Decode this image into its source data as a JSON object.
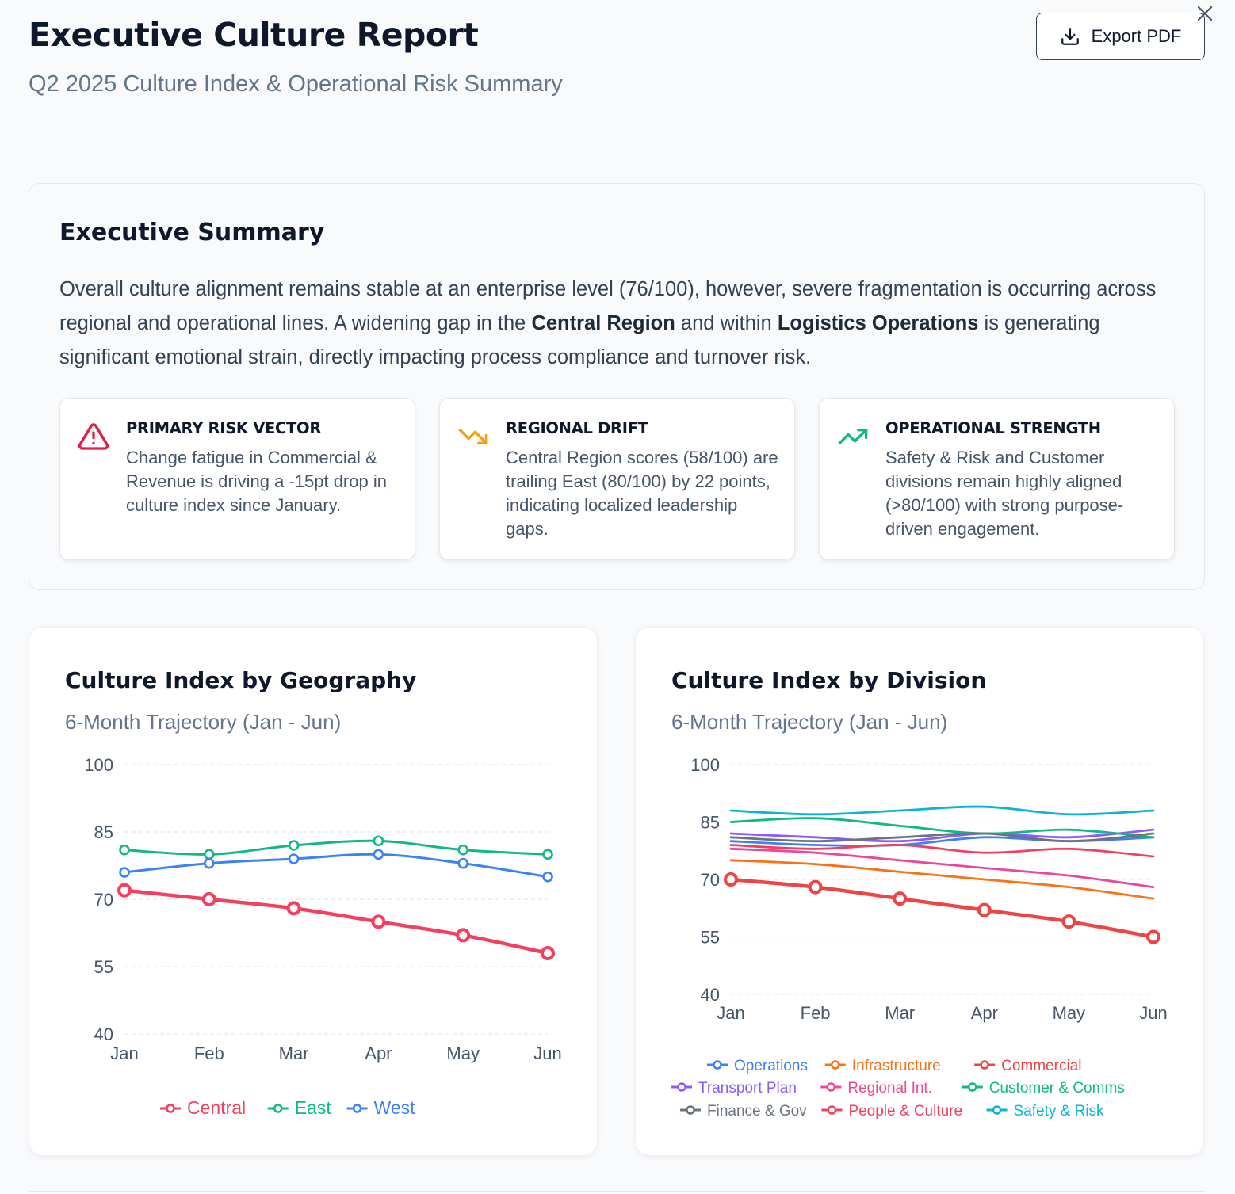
{
  "header": {
    "title": "Executive Culture Report",
    "subtitle": "Q2 2025 Culture Index & Operational Risk Summary",
    "export_label": "Export PDF"
  },
  "summary": {
    "title": "Executive Summary",
    "text_parts": [
      "Overall culture alignment remains stable at an enterprise level (76/100), however, severe fragmentation is occurring across regional and operational lines. A widening gap in the ",
      "Central Region",
      " and within ",
      "Logistics Operations",
      " is generating significant emotional strain, directly impacting process compliance and turnover risk."
    ],
    "cards": [
      {
        "title": "PRIMARY RISK VECTOR",
        "body": "Change fatigue in Commercial & Revenue is driving a -15pt drop in culture index since January.",
        "icon": "warning-triangle-icon",
        "color": "#e11d48"
      },
      {
        "title": "REGIONAL DRIFT",
        "body": "Central Region scores (58/100) are trailing East (80/100) by 22 points, indicating localized leadership gaps.",
        "icon": "trending-down-icon",
        "color": "#f59e0b"
      },
      {
        "title": "OPERATIONAL STRENGTH",
        "body": "Safety & Risk and Customer divisions remain highly aligned (>80/100) with strong purpose-driven engagement.",
        "icon": "trending-up-icon",
        "color": "#10b981"
      }
    ]
  },
  "geo": {
    "title": "Culture Index by Geography",
    "subtitle": "6-Month Trajectory (Jan - Jun)"
  },
  "division": {
    "title": "Culture Index by Division",
    "subtitle": "6-Month Trajectory (Jan - Jun)"
  },
  "chart_data": [
    {
      "type": "line",
      "title": "Culture Index by Geography",
      "categories": [
        "Jan",
        "Feb",
        "Mar",
        "Apr",
        "May",
        "Jun"
      ],
      "ylim": [
        40,
        100
      ],
      "yticks": [
        40,
        55,
        70,
        85,
        100
      ],
      "grid": true,
      "legend": "bottom",
      "series": [
        {
          "name": "Central",
          "color": "#f43f5e",
          "values": [
            72,
            70,
            68,
            65,
            62,
            58
          ],
          "emphasis": true
        },
        {
          "name": "East",
          "color": "#10b981",
          "values": [
            81,
            80,
            82,
            83,
            81,
            80
          ]
        },
        {
          "name": "West",
          "color": "#3b82f6",
          "values": [
            76,
            78,
            79,
            80,
            78,
            75
          ]
        }
      ]
    },
    {
      "type": "line",
      "title": "Culture Index by Division",
      "categories": [
        "Jan",
        "Feb",
        "Mar",
        "Apr",
        "May",
        "Jun"
      ],
      "ylim": [
        40,
        100
      ],
      "yticks": [
        40,
        55,
        70,
        85,
        100
      ],
      "grid": true,
      "legend": "bottom",
      "series": [
        {
          "name": "Operations",
          "color": "#3b82f6",
          "values": [
            80,
            79,
            79,
            81,
            80,
            81
          ]
        },
        {
          "name": "Infrastructure",
          "color": "#f97316",
          "values": [
            75,
            74,
            72,
            70,
            68,
            65
          ]
        },
        {
          "name": "Commercial",
          "color": "#ef4444",
          "values": [
            70,
            68,
            65,
            62,
            59,
            55
          ],
          "emphasis": true
        },
        {
          "name": "Transport Plan",
          "color": "#8b5cf6",
          "values": [
            82,
            81,
            80,
            82,
            81,
            83
          ]
        },
        {
          "name": "Regional Int.",
          "color": "#ec4899",
          "values": [
            78,
            77,
            75,
            73,
            71,
            68
          ]
        },
        {
          "name": "Customer & Comms",
          "color": "#10b981",
          "values": [
            85,
            86,
            84,
            82,
            83,
            81
          ]
        },
        {
          "name": "Finance & Gov",
          "color": "#6b7280",
          "values": [
            81,
            80,
            81,
            82,
            80,
            82
          ]
        },
        {
          "name": "People & Culture",
          "color": "#f43f5e",
          "values": [
            79,
            78,
            79,
            77,
            78,
            76
          ]
        },
        {
          "name": "Safety & Risk",
          "color": "#06b6d4",
          "values": [
            88,
            87,
            88,
            89,
            87,
            88
          ]
        }
      ]
    }
  ]
}
